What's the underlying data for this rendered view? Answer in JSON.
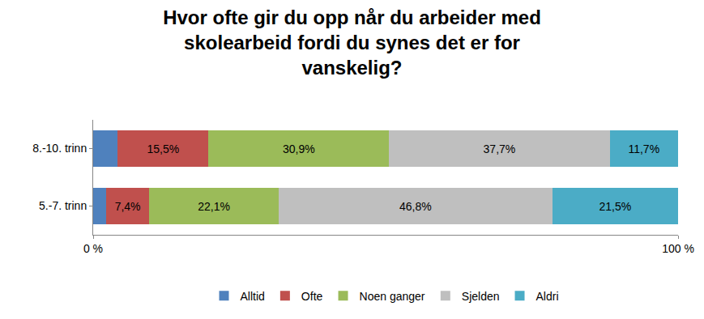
{
  "chart_data": {
    "type": "bar",
    "orientation": "horizontal",
    "stacked": true,
    "title": "Hvor ofte gir du opp når du arbeider med skolearbeid fordi du synes det er for vanskelig?",
    "categories": [
      "8.-10. trinn",
      "5.-7. trinn"
    ],
    "series": [
      {
        "name": "Alltid",
        "color": "#4f81bd",
        "values": [
          4.2,
          2.2
        ],
        "value_labels": [
          null,
          null
        ]
      },
      {
        "name": "Ofte",
        "color": "#c0504d",
        "values": [
          15.5,
          7.4
        ],
        "value_labels": [
          "15,5%",
          "7,4%"
        ]
      },
      {
        "name": "Noen ganger",
        "color": "#9bbb59",
        "values": [
          30.9,
          22.1
        ],
        "value_labels": [
          "30,9%",
          "22,1%"
        ]
      },
      {
        "name": "Sjelden",
        "color": "#bfbfbf",
        "values": [
          37.7,
          46.8
        ],
        "value_labels": [
          "37,7%",
          "46,8%"
        ]
      },
      {
        "name": "Aldri",
        "color": "#4bacc6",
        "values": [
          11.7,
          21.5
        ],
        "value_labels": [
          "11,7%",
          "21,5%"
        ]
      }
    ],
    "xlim": [
      0,
      100
    ],
    "xticks": [
      {
        "value": 0,
        "label": "0 %"
      },
      {
        "value": 100,
        "label": "100 %"
      }
    ],
    "grid": false,
    "legend": "bottom",
    "data_labels": true
  }
}
